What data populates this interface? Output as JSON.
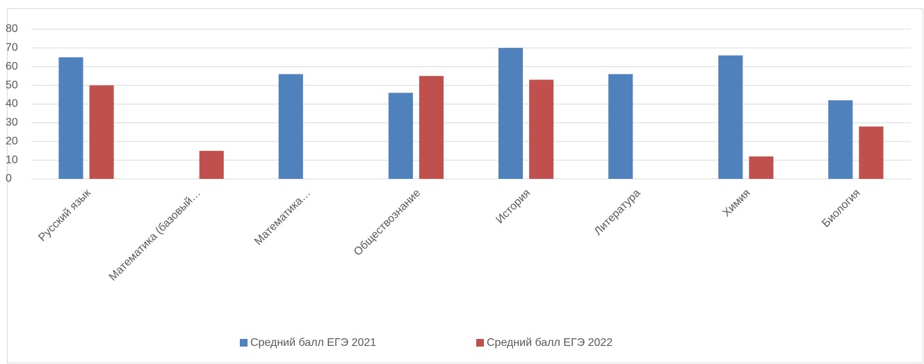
{
  "chart_data": {
    "type": "bar",
    "categories": [
      "Русский язык",
      "Математика (базовый…",
      "Математика…",
      "Обществознание",
      "История",
      "Литература",
      "Химия",
      "Биология"
    ],
    "series": [
      {
        "name": "Средний балл ЕГЭ 2021",
        "color": "#4f81bd",
        "values": [
          65,
          null,
          56,
          46,
          70,
          56,
          66,
          42
        ]
      },
      {
        "name": "Средний балл ЕГЭ 2022",
        "color": "#c0504d",
        "values": [
          50,
          15,
          null,
          55,
          53,
          null,
          12,
          28
        ]
      }
    ],
    "ylim": [
      0,
      80
    ],
    "yticks": [
      0,
      10,
      20,
      30,
      40,
      50,
      60,
      70,
      80
    ],
    "grid": true,
    "legend": "bottom"
  }
}
